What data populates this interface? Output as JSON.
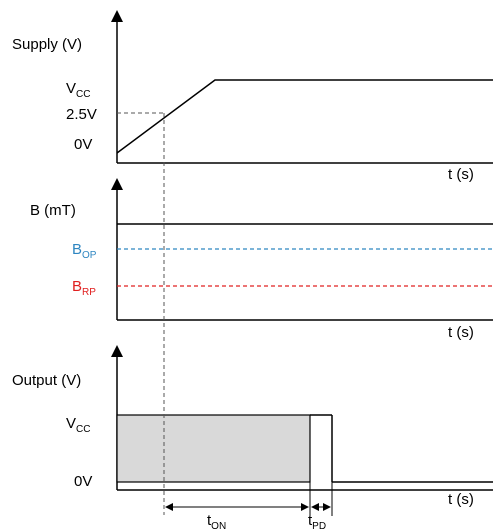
{
  "colors": {
    "axis": "#000000",
    "bop": "#2e86c1",
    "brp": "#e02020",
    "guide": "#555555",
    "output_fill": "#d9d9d9"
  },
  "supply": {
    "y_label": "Supply (V)",
    "t_label": "t (s)",
    "vcc_main": "V",
    "vcc_sub": "CC",
    "threshold": "2.5V",
    "zero": "0V"
  },
  "field": {
    "y_label": "B (mT)",
    "t_label": "t (s)",
    "bop_main": "B",
    "bop_sub": "OP",
    "brp_main": "B",
    "brp_sub": "RP"
  },
  "output": {
    "y_label": "Output (V)",
    "t_label": "t (s)",
    "vcc_main": "V",
    "vcc_sub": "CC",
    "zero": "0V"
  },
  "timing": {
    "ton_main": "t",
    "ton_sub": "ON",
    "tpd_main": "t",
    "tpd_sub": "PD"
  }
}
